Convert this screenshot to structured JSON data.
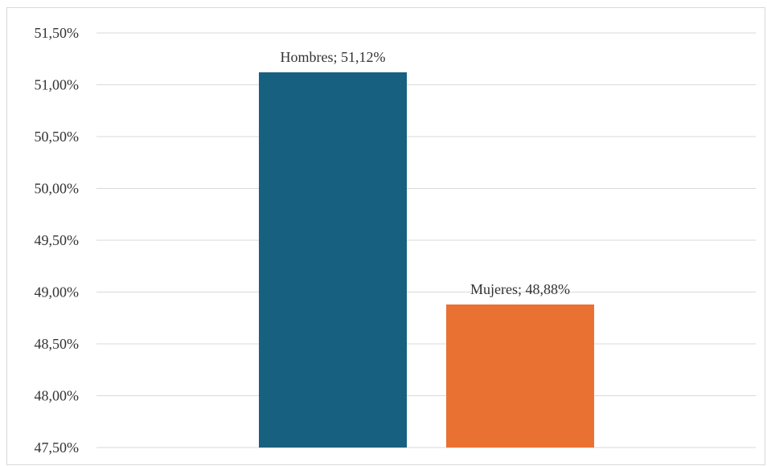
{
  "chart_data": {
    "type": "bar",
    "categories": [
      "Hombres",
      "Mujeres"
    ],
    "values": [
      51.12,
      48.88
    ],
    "data_labels": [
      "Hombres; 51,12%",
      "Mujeres; 48,88%"
    ],
    "ylim": [
      47.5,
      51.5
    ],
    "y_ticks": [
      47.5,
      48.0,
      48.5,
      49.0,
      49.5,
      50.0,
      50.5,
      51.0,
      51.5
    ],
    "y_tick_labels": [
      "47,50%",
      "48,00%",
      "48,50%",
      "49,00%",
      "49,50%",
      "50,00%",
      "50,50%",
      "51,00%",
      "51,50%"
    ],
    "colors": [
      "#17607f",
      "#e97132"
    ],
    "grid": true,
    "legend": "none"
  }
}
